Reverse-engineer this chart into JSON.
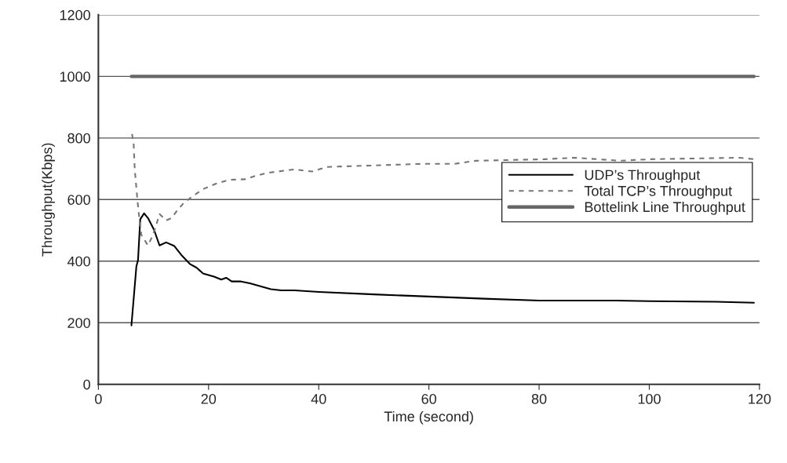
{
  "chart_data": {
    "type": "line",
    "xlabel": "Time (second)",
    "ylabel": "Throughput(Kbps)",
    "xlim": [
      0,
      120
    ],
    "xticks": [
      0,
      20,
      40,
      60,
      80,
      100,
      120
    ],
    "ylim": [
      0,
      1200
    ],
    "yticks": [
      0,
      200,
      400,
      600,
      800,
      1000,
      1200
    ],
    "grid": "y",
    "legend": "right",
    "marker": "none",
    "series": [
      {
        "name": "UDP’s Throughput",
        "color": "#000000",
        "line_style": "solid",
        "x": [
          6.0,
          6.9,
          7.2,
          7.6,
          8.3,
          9.0,
          10.1,
          11.1,
          12.3,
          13.8,
          15.2,
          16.6,
          17.8,
          19.0,
          21.1,
          22.3,
          23.2,
          24.2,
          25.9,
          27.5,
          31.3,
          33.2,
          35.6,
          40,
          50,
          60,
          70,
          80,
          94,
          100,
          112,
          119
        ],
        "values": [
          191,
          383,
          404,
          536,
          555,
          540,
          502,
          451,
          461,
          449,
          417,
          391,
          379,
          360,
          349,
          340,
          346,
          334,
          334,
          328,
          309,
          305,
          305,
          300,
          292,
          285,
          278,
          272,
          272,
          270,
          268,
          265
        ]
      },
      {
        "name": "Total TCP’s Throughput",
        "color": "#777777",
        "line_style": "dashed",
        "x": [
          6.1,
          6.4,
          6.6,
          7.1,
          7.4,
          7.8,
          9.0,
          9.7,
          10.4,
          11.1,
          12.3,
          13.3,
          14.2,
          15.4,
          16.6,
          19.0,
          21.3,
          23.7,
          26.6,
          28.5,
          30.8,
          35.6,
          38.8,
          41.5,
          50.4,
          58.7,
          64.7,
          68.5,
          81.0,
          86.5,
          94.7,
          100.1,
          116.4,
          119
        ],
        "values": [
          813,
          783,
          698,
          596,
          545,
          485,
          451,
          477,
          511,
          553,
          532,
          540,
          562,
          587,
          604,
          634,
          651,
          664,
          666,
          677,
          687,
          698,
          691,
          706,
          711,
          716,
          716,
          726,
          731,
          736,
          726,
          731,
          736,
          731
        ]
      },
      {
        "name": "Bottelink Line Throughput",
        "color": "#666666",
        "line_style": "solid",
        "x": [
          6,
          119
        ],
        "values": [
          1000,
          1000
        ]
      }
    ]
  }
}
